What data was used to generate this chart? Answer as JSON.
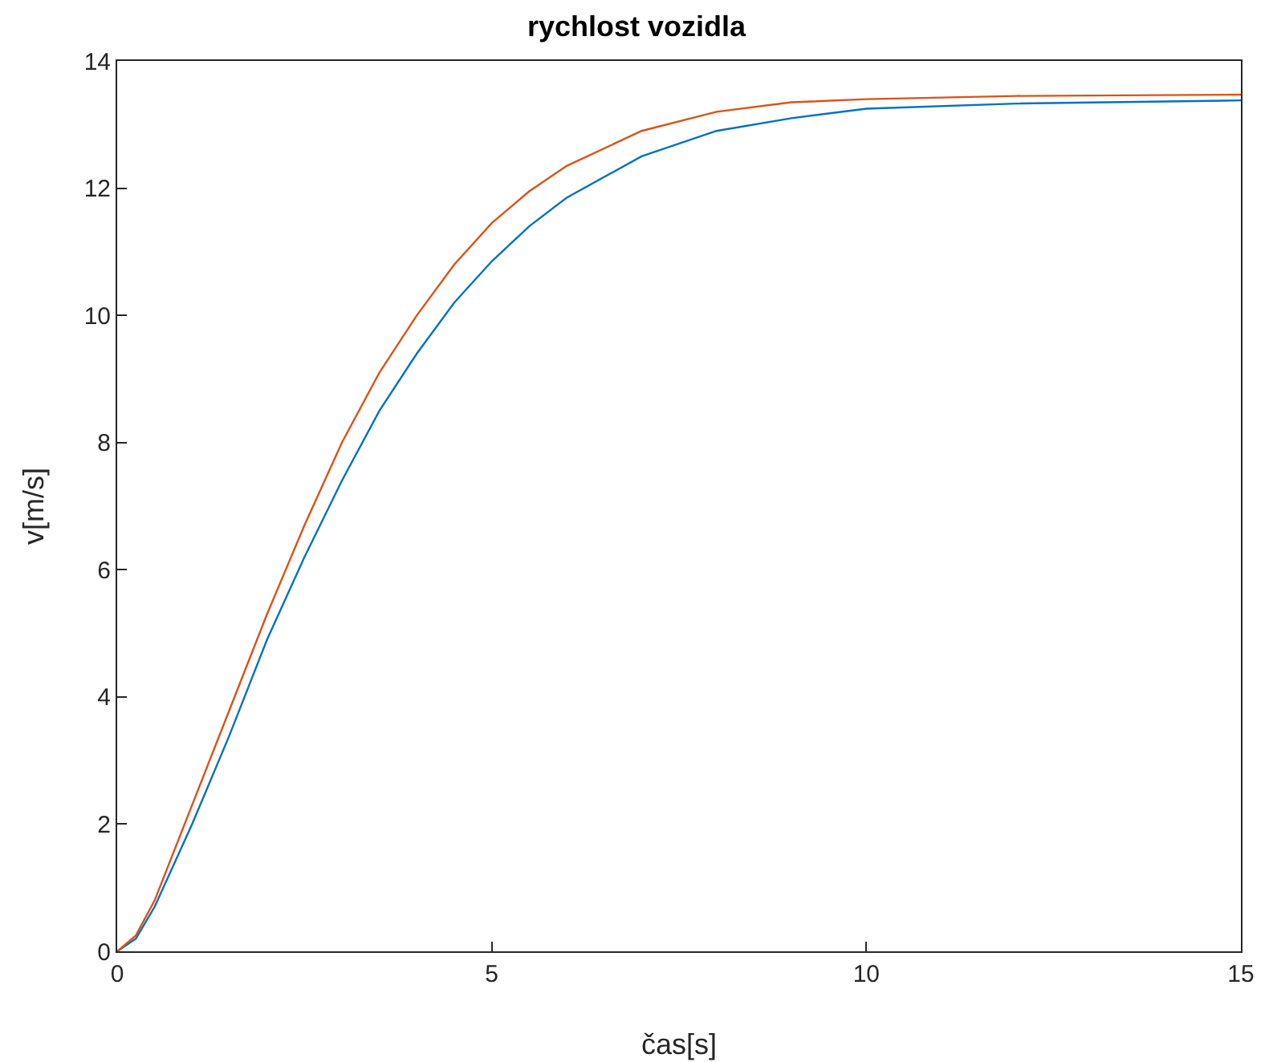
{
  "chart_data": {
    "type": "line",
    "title": "rychlost vozidla",
    "xlabel": "čas[s]",
    "ylabel": "v[m/s]",
    "xlim": [
      0,
      15
    ],
    "xticks": [
      0,
      5,
      10,
      15
    ],
    "ylim": [
      0,
      14
    ],
    "yticks": [
      0,
      2,
      4,
      6,
      8,
      10,
      12,
      14
    ],
    "grid": false,
    "marker": "none",
    "line_style": "solid",
    "series": [
      {
        "color": "#0072bd",
        "x": [
          0,
          0.25,
          0.5,
          1,
          1.5,
          2,
          2.5,
          3,
          3.5,
          4,
          4.5,
          5,
          5.5,
          6,
          7,
          8,
          9,
          10,
          12,
          15
        ],
        "values": [
          0,
          0.2,
          0.7,
          2.0,
          3.4,
          4.9,
          6.2,
          7.4,
          8.5,
          9.4,
          10.2,
          10.85,
          11.4,
          11.85,
          12.5,
          12.9,
          13.1,
          13.25,
          13.33,
          13.38
        ]
      },
      {
        "color": "#d95319",
        "x": [
          0,
          0.25,
          0.5,
          1,
          1.5,
          2,
          2.5,
          3,
          3.5,
          4,
          4.5,
          5,
          5.5,
          6,
          7,
          8,
          9,
          10,
          12,
          15
        ],
        "values": [
          0,
          0.25,
          0.8,
          2.3,
          3.8,
          5.3,
          6.7,
          8.0,
          9.1,
          10.0,
          10.8,
          11.45,
          11.95,
          12.35,
          12.9,
          13.2,
          13.35,
          13.4,
          13.45,
          13.47
        ]
      }
    ]
  }
}
